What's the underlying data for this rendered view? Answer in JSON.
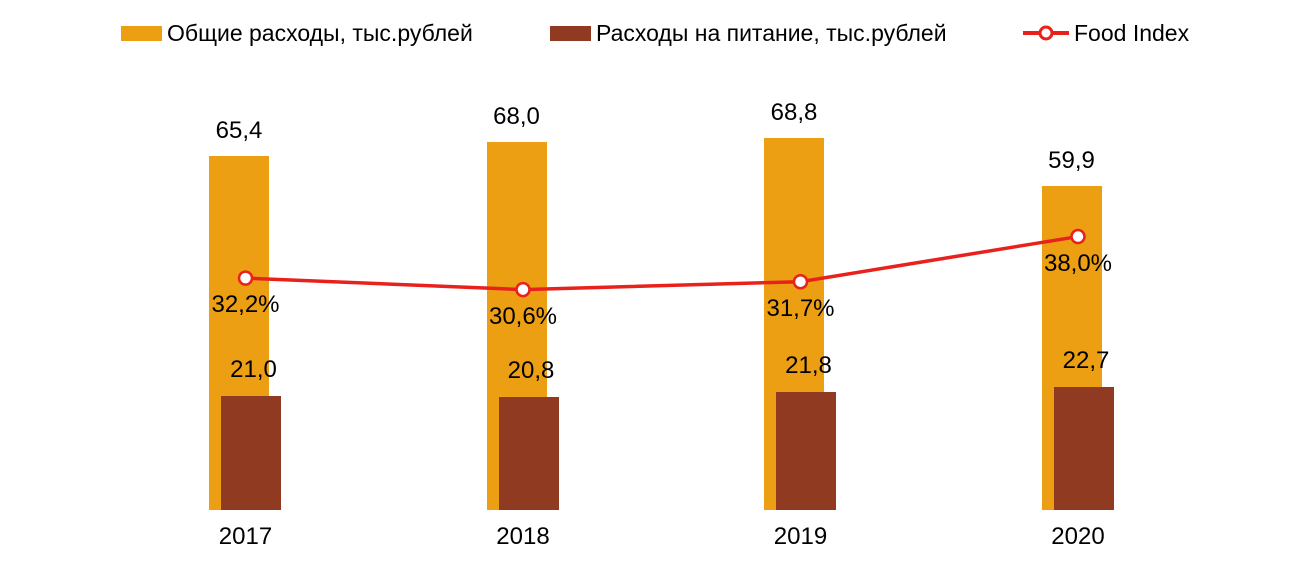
{
  "legend": {
    "items": [
      {
        "label": "Общие расходы, тыс.рублей",
        "marker": "bar-swatch",
        "color": "#EC9F13"
      },
      {
        "label": "Расходы на питание, тыс.рублей",
        "marker": "bar-swatch",
        "color": "#8F3A21"
      },
      {
        "label": "Food Index",
        "marker": "line-marker",
        "color": "#E9211C"
      }
    ]
  },
  "chart_data": {
    "type": "bar",
    "categories": [
      "2017",
      "2018",
      "2019",
      "2020"
    ],
    "series": [
      {
        "name": "Общие расходы, тыс.рублей",
        "type": "bar",
        "color": "#EC9F13",
        "values": [
          65.4,
          68.0,
          68.8,
          59.9
        ],
        "labels": [
          "65,4",
          "68,0",
          "68,8",
          "59,9"
        ]
      },
      {
        "name": "Расходы на питание, тыс.рублей",
        "type": "bar",
        "color": "#8F3A21",
        "values": [
          21.0,
          20.8,
          21.8,
          22.7
        ],
        "labels": [
          "21,0",
          "20,8",
          "21,8",
          "22,7"
        ]
      },
      {
        "name": "Food Index",
        "type": "line",
        "color": "#E9211C",
        "marker_fill": "#ffffff",
        "unit": "%",
        "values": [
          32.2,
          30.6,
          31.7,
          38.0
        ],
        "labels": [
          "32,2%",
          "30,6%",
          "31,7%",
          "38,0%"
        ]
      }
    ],
    "title": "",
    "xlabel": "",
    "ylabel": "",
    "grid": false,
    "legend_position": "top",
    "value_labels_visible": true,
    "axes_visible": false
  }
}
